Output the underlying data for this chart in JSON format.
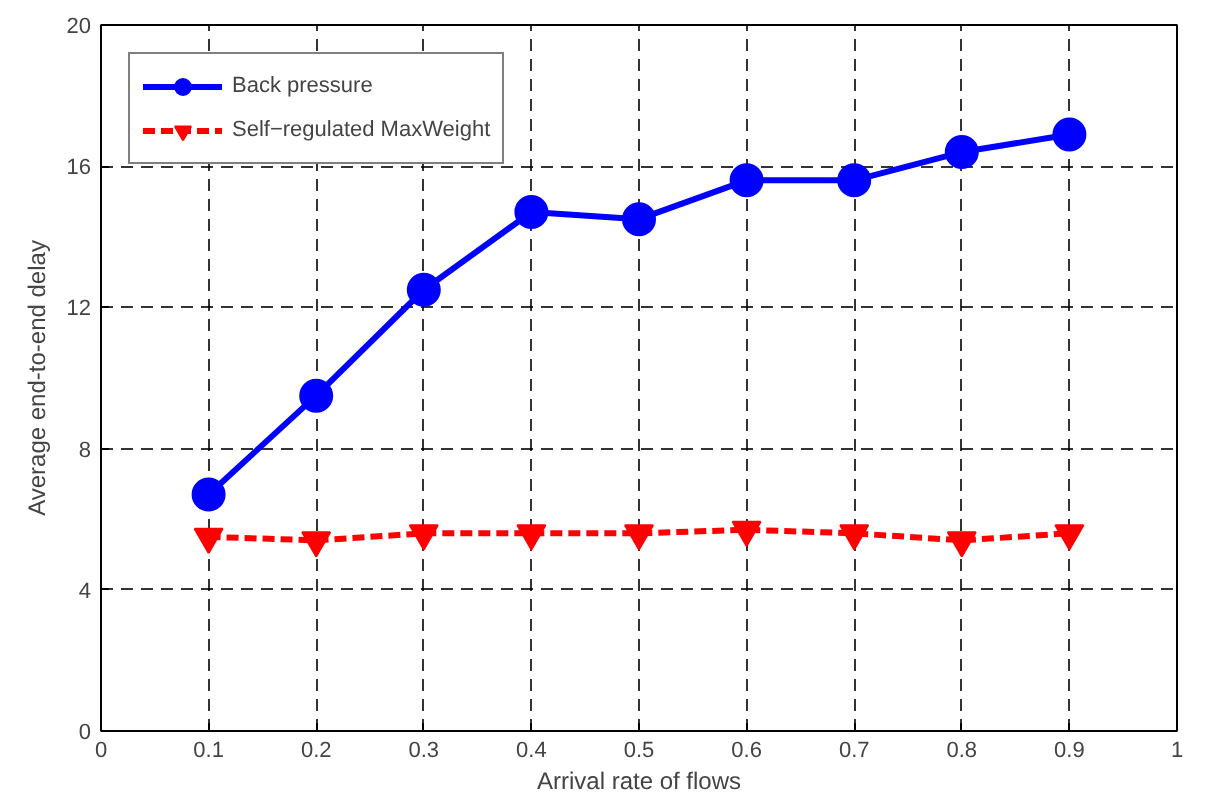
{
  "chart_data": {
    "type": "line",
    "xlabel": "Arrival rate of flows",
    "ylabel": "Average end-to-end delay",
    "x": [
      0.1,
      0.2,
      0.3,
      0.4,
      0.5,
      0.6,
      0.7,
      0.8,
      0.9
    ],
    "series": [
      {
        "name": "Back pressure",
        "color": "#0000ff",
        "marker": "circle",
        "line_style": "solid",
        "values": [
          6.7,
          9.5,
          12.5,
          14.7,
          14.5,
          15.6,
          15.6,
          16.4,
          16.9
        ]
      },
      {
        "name": "Self−regulated MaxWeight",
        "color": "#ff0000",
        "marker": "triangle",
        "line_style": "dashed",
        "values": [
          5.5,
          5.4,
          5.6,
          5.6,
          5.6,
          5.7,
          5.6,
          5.4,
          5.6
        ]
      }
    ],
    "xlim": [
      0,
      1
    ],
    "xticks": [
      0,
      0.1,
      0.2,
      0.3,
      0.4,
      0.5,
      0.6,
      0.7,
      0.8,
      0.9,
      1
    ],
    "ylim": [
      0,
      20
    ],
    "yticks": [
      0,
      4,
      8,
      12,
      16,
      20
    ],
    "grid": true,
    "legend": "top left"
  }
}
